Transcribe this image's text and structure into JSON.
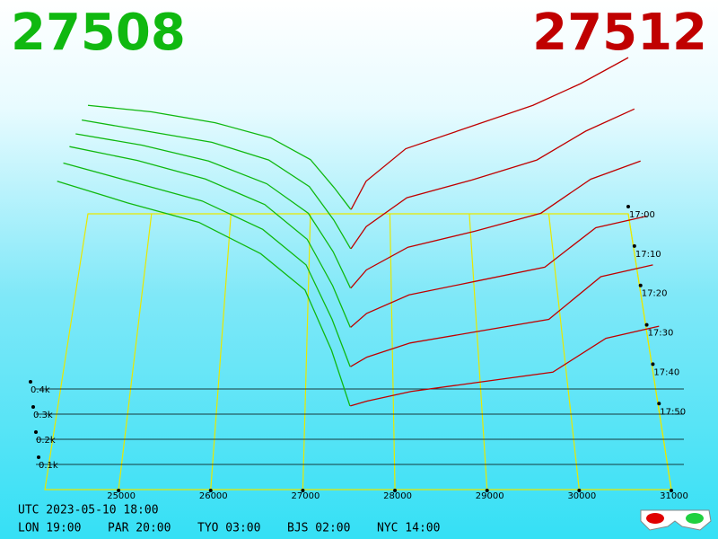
{
  "chart_data": {
    "type": "depth3d",
    "bid_price": 27508,
    "ask_price": 27512,
    "bid_color": "#10b810",
    "ask_color": "#c00000",
    "xlim": [
      24200,
      31000
    ],
    "xticks": [
      25000,
      26000,
      27000,
      28000,
      29000,
      30000,
      31000
    ],
    "yticks": [
      {
        "value": 0.1,
        "label": "0.1k"
      },
      {
        "value": 0.2,
        "label": "0.2k"
      },
      {
        "value": 0.3,
        "label": "0.3k"
      },
      {
        "value": 0.4,
        "label": "0.4k"
      }
    ],
    "times": [
      "17:00",
      "17:10",
      "17:20",
      "17:30",
      "17:40",
      "17:50"
    ],
    "bid_prices": [
      24200,
      25000,
      25800,
      26500,
      27000,
      27300,
      27508
    ],
    "ask_prices": [
      27512,
      27700,
      28200,
      29000,
      29800,
      30400,
      31000
    ],
    "snapshots": [
      {
        "bid_depth": [
          0.5,
          0.47,
          0.42,
          0.35,
          0.25,
          0.12,
          0.02
        ],
        "ask_depth": [
          0.02,
          0.15,
          0.3,
          0.4,
          0.5,
          0.6,
          0.72
        ]
      },
      {
        "bid_depth": [
          0.6,
          0.55,
          0.5,
          0.42,
          0.3,
          0.15,
          0.02
        ],
        "ask_depth": [
          0.02,
          0.12,
          0.25,
          0.33,
          0.42,
          0.55,
          0.65
        ]
      },
      {
        "bid_depth": [
          0.7,
          0.65,
          0.58,
          0.48,
          0.35,
          0.18,
          0.02
        ],
        "ask_depth": [
          0.02,
          0.1,
          0.2,
          0.27,
          0.35,
          0.5,
          0.58
        ]
      },
      {
        "bid_depth": [
          0.8,
          0.74,
          0.66,
          0.55,
          0.4,
          0.2,
          0.02
        ],
        "ask_depth": [
          0.02,
          0.08,
          0.16,
          0.22,
          0.28,
          0.45,
          0.5
        ]
      },
      {
        "bid_depth": [
          0.88,
          0.8,
          0.72,
          0.6,
          0.45,
          0.22,
          0.02
        ],
        "ask_depth": [
          0.02,
          0.06,
          0.12,
          0.17,
          0.22,
          0.4,
          0.45
        ]
      },
      {
        "bid_depth": [
          0.95,
          0.86,
          0.78,
          0.65,
          0.5,
          0.25,
          0.02
        ],
        "ask_depth": [
          0.02,
          0.04,
          0.08,
          0.12,
          0.16,
          0.3,
          0.35
        ]
      }
    ],
    "utc": "UTC 2023-05-10 18:00",
    "zones": [
      "LON 19:00",
      "PAR 20:00",
      "TYO 03:00",
      "BJS 02:00",
      "NYC 14:00"
    ]
  }
}
